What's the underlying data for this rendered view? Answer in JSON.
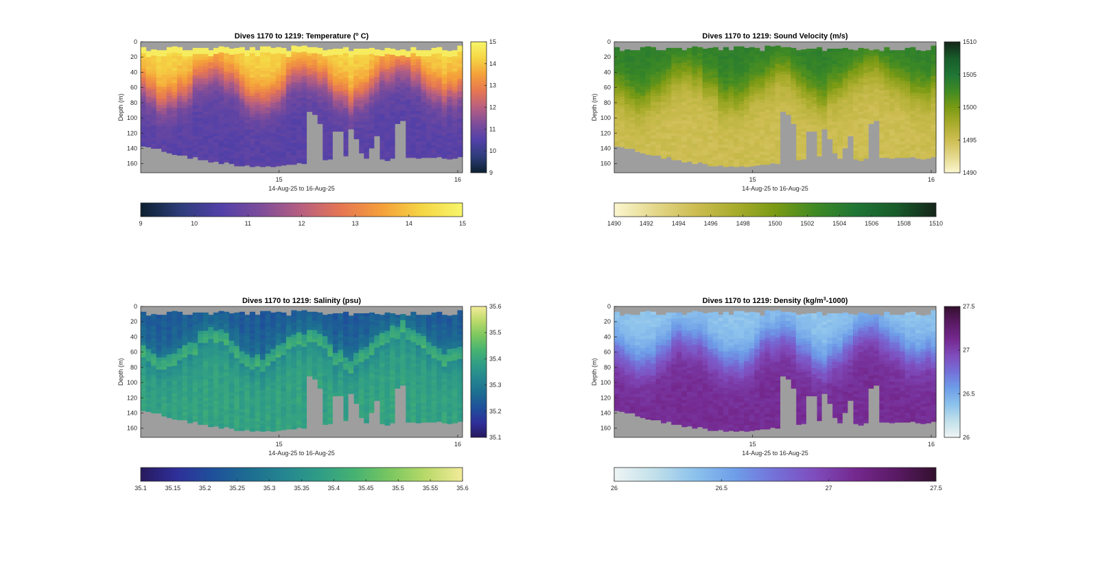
{
  "figure": {
    "background": "#ffffff",
    "nodata_color": "#9e9e9e"
  },
  "chart_data": [
    {
      "type": "heatmap",
      "title": "Dives 1170 to 1219: Temperature (",
      "title_sup": "o",
      "title_suffix": " C)",
      "xlabel": "14-Aug-25 to 16-Aug-25",
      "ylabel": "Depth (m)",
      "x_ticks": [
        "15",
        "16"
      ],
      "y_ticks": [
        "0",
        "20",
        "40",
        "60",
        "80",
        "100",
        "120",
        "140",
        "160"
      ],
      "ylim": [
        0,
        172
      ],
      "y_reversed": true,
      "variable": "temperature",
      "clim": [
        9,
        15
      ],
      "colorbar_side_ticks": [
        "15",
        "14",
        "13",
        "12",
        "11",
        "10",
        "9"
      ],
      "colorbar_bottom_ticks": [
        "9",
        "10",
        "11",
        "12",
        "13",
        "14",
        "15"
      ],
      "colormap": [
        "#0d2030",
        "#2e3d7a",
        "#5240a8",
        "#7e4d9a",
        "#b85f80",
        "#e67752",
        "#f5a03a",
        "#f5d645",
        "#f7f56a"
      ],
      "profiles": 62,
      "surface_mixed_layer": {
        "depth_range_m": [
          0,
          60
        ],
        "value_approx": 14.3
      },
      "deep_layer": {
        "depth_range_m": [
          80,
          170
        ],
        "value_approx": 10.6
      }
    },
    {
      "type": "heatmap",
      "title": "Dives 1170 to 1219: Sound Velocity (m/s)",
      "xlabel": "14-Aug-25 to 16-Aug-25",
      "ylabel": "Depth (m)",
      "x_ticks": [
        "15",
        "16"
      ],
      "y_ticks": [
        "0",
        "20",
        "40",
        "60",
        "80",
        "100",
        "120",
        "140",
        "160"
      ],
      "ylim": [
        0,
        172
      ],
      "y_reversed": true,
      "variable": "sound_velocity",
      "clim": [
        1490,
        1510
      ],
      "colorbar_side_ticks": [
        "1510",
        "1505",
        "1500",
        "1495",
        "1490"
      ],
      "colorbar_bottom_ticks": [
        "1490",
        "1492",
        "1494",
        "1496",
        "1498",
        "1500",
        "1502",
        "1504",
        "1506",
        "1508",
        "1510"
      ],
      "colormap": [
        "#fbf6cf",
        "#e4d88c",
        "#cdbd52",
        "#a9ac2c",
        "#7a9a14",
        "#3f8a24",
        "#1f7535",
        "#185c2a",
        "#15251a"
      ],
      "profiles": 62,
      "surface_mixed_layer": {
        "depth_range_m": [
          0,
          60
        ],
        "value_approx": 1503.8
      },
      "deep_layer": {
        "depth_range_m": [
          80,
          170
        ],
        "value_approx": 1495.0
      }
    },
    {
      "type": "heatmap",
      "title": "Dives 1170 to 1219: Salinity (psu)",
      "xlabel": "14-Aug-25 to 16-Aug-25",
      "ylabel": "Depth (m)",
      "x_ticks": [
        "15",
        "16"
      ],
      "y_ticks": [
        "0",
        "20",
        "40",
        "60",
        "80",
        "100",
        "120",
        "140",
        "160"
      ],
      "ylim": [
        0,
        172
      ],
      "y_reversed": true,
      "variable": "salinity",
      "clim": [
        35.1,
        35.6
      ],
      "colorbar_side_ticks": [
        "35.6",
        "35.5",
        "35.4",
        "35.3",
        "35.2",
        "35.1"
      ],
      "colorbar_bottom_ticks": [
        "35.1",
        "35.15",
        "35.2",
        "35.25",
        "35.3",
        "35.35",
        "35.4",
        "35.45",
        "35.5",
        "35.55",
        "35.6"
      ],
      "colormap": [
        "#27195c",
        "#2f2f9a",
        "#1f4f9b",
        "#1d6c91",
        "#248590",
        "#2f9d86",
        "#47b371",
        "#7cc760",
        "#bada6a",
        "#f3eb9a"
      ],
      "profiles": 62,
      "surface_mixed_layer": {
        "depth_range_m": [
          0,
          60
        ],
        "value_approx": 35.22
      },
      "deep_layer": {
        "depth_range_m": [
          80,
          170
        ],
        "value_approx": 35.38
      }
    },
    {
      "type": "heatmap",
      "title": "Dives 1170 to 1219: Density (kg/m",
      "title_sup": "3",
      "title_suffix": "-1000)",
      "xlabel": "14-Aug-25 to 16-Aug-25",
      "ylabel": "Depth (m)",
      "x_ticks": [
        "15",
        "16"
      ],
      "y_ticks": [
        "0",
        "20",
        "40",
        "60",
        "80",
        "100",
        "120",
        "140",
        "160"
      ],
      "ylim": [
        0,
        172
      ],
      "y_reversed": true,
      "variable": "density",
      "clim": [
        26,
        27.5
      ],
      "colorbar_side_ticks": [
        "27.5",
        "27",
        "26.5",
        "26"
      ],
      "colorbar_bottom_ticks": [
        "26",
        "26.5",
        "27",
        "27.5"
      ],
      "colormap": [
        "#eef4f4",
        "#c2e0ea",
        "#8cc2ec",
        "#6e9ee8",
        "#7470d8",
        "#7f4cbc",
        "#74288e",
        "#5a1a64",
        "#33102e"
      ],
      "profiles": 62,
      "surface_mixed_layer": {
        "depth_range_m": [
          0,
          60
        ],
        "value_approx": 26.35
      },
      "deep_layer": {
        "depth_range_m": [
          80,
          170
        ],
        "value_approx": 27.1
      }
    }
  ]
}
